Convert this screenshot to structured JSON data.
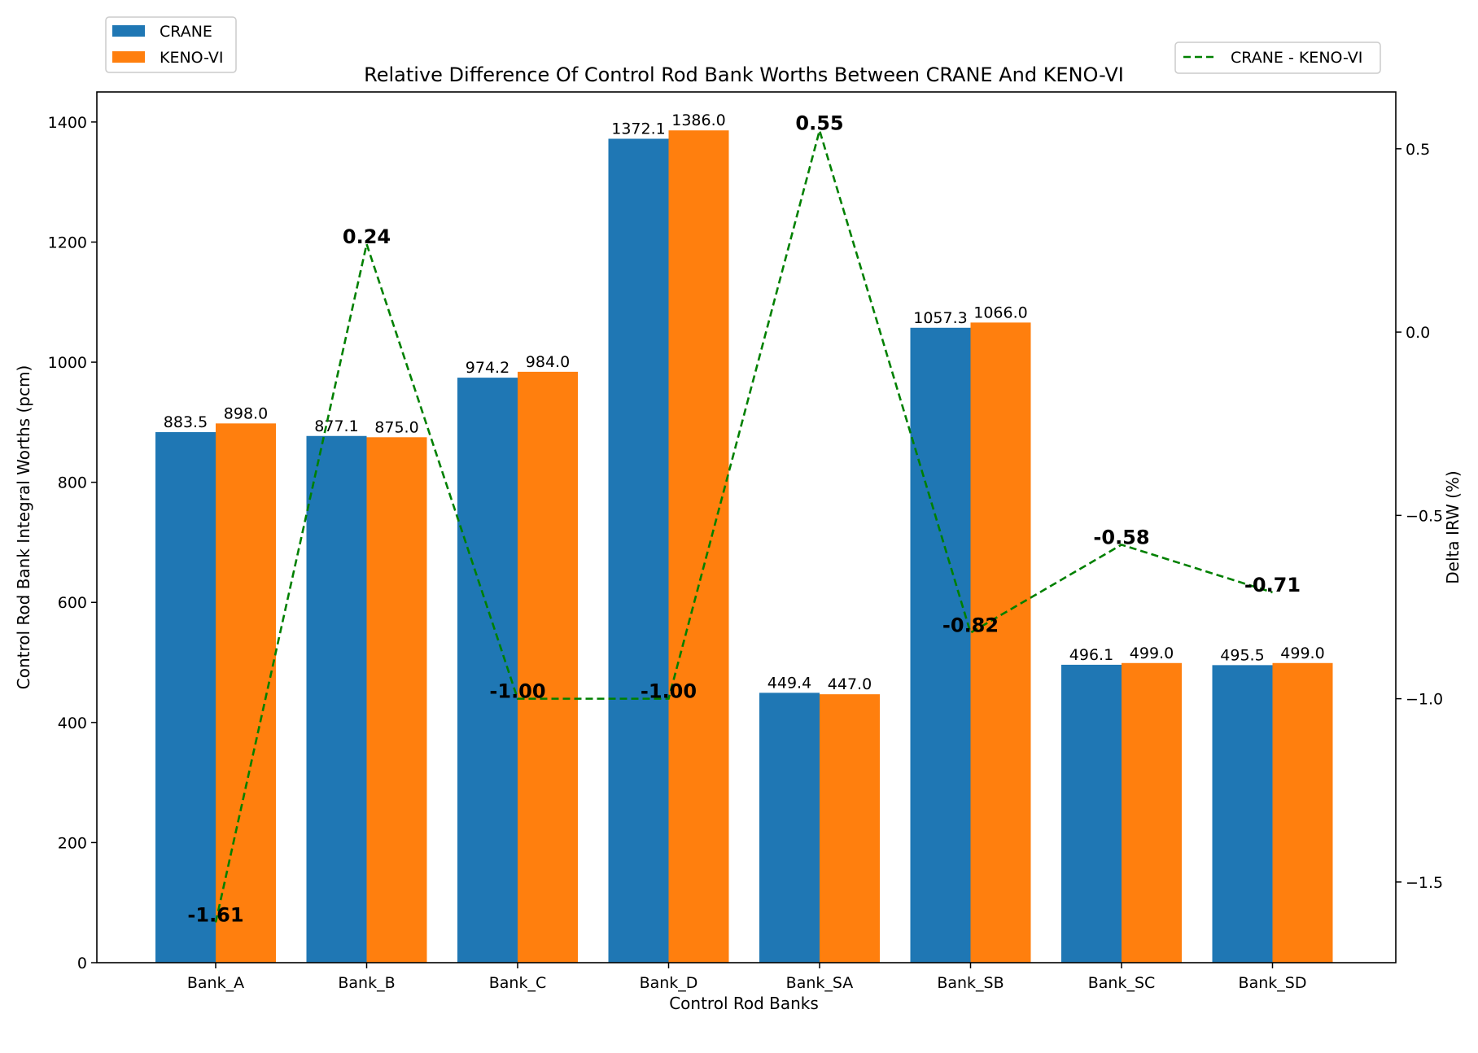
{
  "chart_data": {
    "type": "bar",
    "title": "Relative Difference Of Control Rod Bank Worths Between CRANE And KENO-VI",
    "xlabel": "Control Rod Banks",
    "ylabel": "Control Rod Bank Integral Worths (pcm)",
    "y2label": "Delta IRW (%)",
    "categories": [
      "Bank_A",
      "Bank_B",
      "Bank_C",
      "Bank_D",
      "Bank_SA",
      "Bank_SB",
      "Bank_SC",
      "Bank_SD"
    ],
    "ylim": [
      0,
      1450
    ],
    "y2lim": [
      -1.72,
      0.655
    ],
    "yticks": [
      0,
      200,
      400,
      600,
      800,
      1000,
      1200,
      1400
    ],
    "y2ticks": [
      0.5,
      0.0,
      -0.5,
      -1.0,
      -1.5
    ],
    "y2tick_labels": [
      "0.5",
      "0.0",
      "−0.5",
      "−1.0",
      "−1.5"
    ],
    "series": [
      {
        "name": "CRANE",
        "color": "#1f77b4",
        "values": [
          883.5,
          877.1,
          974.2,
          1372.1,
          449.4,
          1057.3,
          496.1,
          495.5
        ],
        "labels": [
          "883.5",
          "877.1",
          "974.2",
          "1372.1",
          "449.4",
          "1057.3",
          "496.1",
          "495.5"
        ]
      },
      {
        "name": "KENO-VI",
        "color": "#ff7f0e",
        "values": [
          898.0,
          875.0,
          984.0,
          1386.0,
          447.0,
          1066.0,
          499.0,
          499.0
        ],
        "labels": [
          "898.0",
          "875.0",
          "984.0",
          "1386.0",
          "447.0",
          "1066.0",
          "499.0",
          "499.0"
        ]
      }
    ],
    "line_series": {
      "name": "CRANE - KENO-VI",
      "color": "#008000",
      "style": "dashed",
      "axis": "right",
      "values": [
        -1.61,
        0.24,
        -1.0,
        -1.0,
        0.55,
        -0.82,
        -0.58,
        -0.71
      ],
      "labels": [
        "-1.61",
        "0.24",
        "-1.00",
        "-1.00",
        "0.55",
        "-0.82",
        "-0.58",
        "-0.71"
      ]
    },
    "legend_bars_position": "upper-left-outside",
    "legend_line_position": "upper-right-outside",
    "grid": false
  }
}
